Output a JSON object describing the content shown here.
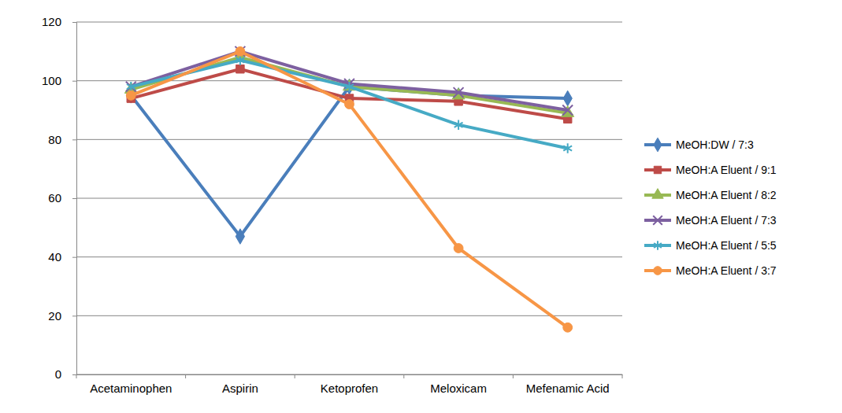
{
  "chart_data": {
    "type": "line",
    "categories": [
      "Acetaminophen",
      "Aspirin",
      "Ketoprofen",
      "Meloxicam",
      "Mefenamic Acid"
    ],
    "series": [
      {
        "name": "MeOH:DW / 7:3",
        "color": "#4a7ebb",
        "marker": "diamond",
        "values": [
          95,
          47,
          98,
          95,
          94
        ]
      },
      {
        "name": "MeOH:A Eluent / 9:1",
        "color": "#be4b48",
        "marker": "square",
        "values": [
          94,
          104,
          94,
          93,
          87
        ]
      },
      {
        "name": "MeOH:A Eluent / 8:2",
        "color": "#98b954",
        "marker": "triangle",
        "values": [
          97,
          108,
          98,
          95,
          89
        ]
      },
      {
        "name": "MeOH:A Eluent / 7:3",
        "color": "#7d60a0",
        "marker": "x",
        "values": [
          98,
          110,
          99,
          96,
          90
        ]
      },
      {
        "name": "MeOH:A Eluent / 5:5",
        "color": "#46aac5",
        "marker": "asterisk",
        "values": [
          98,
          107,
          98,
          85,
          77
        ]
      },
      {
        "name": "MeOH:A Eluent / 3:7",
        "color": "#f79646",
        "marker": "circle",
        "values": [
          95,
          110,
          92,
          43,
          16
        ]
      }
    ],
    "ylim": [
      0,
      120
    ],
    "yticks": [
      0,
      20,
      40,
      60,
      80,
      100,
      120
    ],
    "grid": true,
    "legend": "right"
  }
}
